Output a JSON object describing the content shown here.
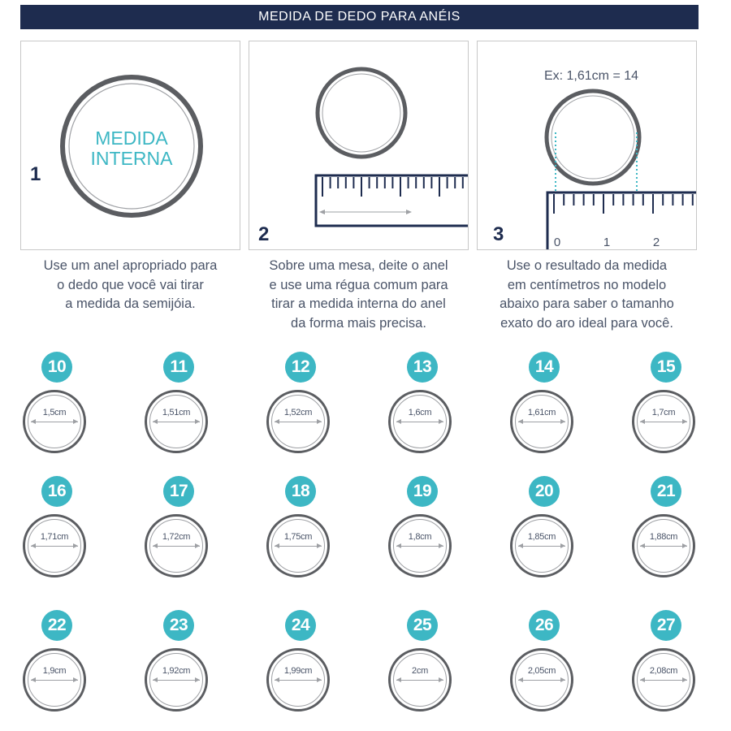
{
  "banner": {
    "title": "MEDIDA DE DEDO PARA ANÉIS"
  },
  "steps": [
    {
      "number": "1",
      "ring_text_line1": "MEDIDA",
      "ring_text_line2": "INTERNA",
      "desc_lines": [
        "Use um anel apropriado para",
        "o dedo que você vai tirar",
        "a medida da semijóia."
      ]
    },
    {
      "number": "2",
      "desc_lines": [
        "Sobre uma mesa, deite o anel",
        "e use uma régua comum para",
        "tirar a medida interna do anel",
        "da forma mais precisa."
      ]
    },
    {
      "number": "3",
      "example": "Ex: 1,61cm = 14",
      "ruler_labels": [
        "0",
        "1",
        "2"
      ],
      "desc_lines": [
        "Use o resultado da medida",
        "em centímetros no modelo",
        "abaixo para saber o tamanho",
        "exato do aro ideal para você."
      ]
    }
  ],
  "sizes": [
    {
      "size": "10",
      "measure": "1,5cm"
    },
    {
      "size": "11",
      "measure": "1,51cm"
    },
    {
      "size": "12",
      "measure": "1,52cm"
    },
    {
      "size": "13",
      "measure": "1,6cm"
    },
    {
      "size": "14",
      "measure": "1,61cm"
    },
    {
      "size": "15",
      "measure": "1,7cm"
    },
    {
      "size": "16",
      "measure": "1,71cm"
    },
    {
      "size": "17",
      "measure": "1,72cm"
    },
    {
      "size": "18",
      "measure": "1,75cm"
    },
    {
      "size": "19",
      "measure": "1,8cm"
    },
    {
      "size": "20",
      "measure": "1,85cm"
    },
    {
      "size": "21",
      "measure": "1,88cm"
    },
    {
      "size": "22",
      "measure": "1,9cm"
    },
    {
      "size": "23",
      "measure": "1,92cm"
    },
    {
      "size": "24",
      "measure": "1,99cm"
    },
    {
      "size": "25",
      "measure": "2cm"
    },
    {
      "size": "26",
      "measure": "2,05cm"
    },
    {
      "size": "27",
      "measure": "2,08cm"
    }
  ],
  "colors": {
    "navy": "#1e2c4f",
    "teal": "#3db7c4",
    "ring": "#5b5d61"
  }
}
